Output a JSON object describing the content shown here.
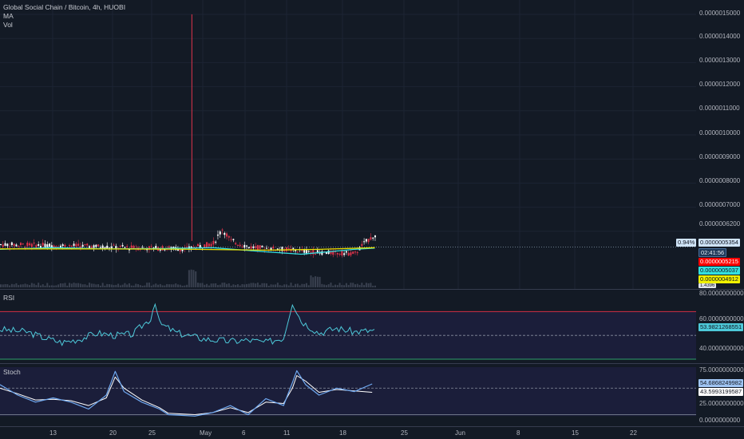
{
  "main": {
    "title": "Global Social Chain / Bitcoin, 4h, HUOBI",
    "indicators": [
      "MA",
      "Vol"
    ],
    "price_ticks": [
      "0.0000015000",
      "0.0000014000",
      "0.0000013000",
      "0.0000012000",
      "0.0000011000",
      "0.0000010000",
      "0.0000009000",
      "0.0000008000",
      "0.0000007000",
      "0.0000006200"
    ],
    "change_badge": "0.94%",
    "last_price": "0.0000005354",
    "countdown": "02:41:56",
    "ma_red": "0.0000005215",
    "ma_cyan": "0.0000005037",
    "ma_yellow": "0.0000004912",
    "vol_tag": "1.4396"
  },
  "rsi": {
    "label": "RSI",
    "ticks": [
      "80.0000000000",
      "60.0000000000",
      "40.0000000000"
    ],
    "value": "53.9821268551"
  },
  "stoch": {
    "label": "Stoch",
    "ticks": [
      "75.0000000000",
      "25.0000000000",
      "0.0000000000"
    ],
    "k_value": "54.6868249982",
    "d_value": "43.5993199587"
  },
  "time_axis": [
    "13",
    "20",
    "25",
    "May",
    "6",
    "11",
    "18",
    "25",
    "Jun",
    "8",
    "15",
    "22"
  ],
  "colors": {
    "background": "#131a25",
    "candle_up": "#ffffff",
    "candle_down": "#e0334b",
    "ma_cyan": "#33e0e0",
    "ma_yellow": "#e8e000",
    "ma_red": "#ff0000",
    "rsi_line": "#4dc9d9",
    "stoch_k": "#6fa8f0",
    "stoch_d": "#ffffff",
    "osc_band": "#1b1e3a"
  },
  "chart_data": {
    "type": "candlestick",
    "title": "Global Social Chain / Bitcoin, 4h, HUOBI",
    "ylim": [
      5e-07,
      1.5e-06
    ],
    "price_path": [
      [
        0,
        5.45e-07
      ],
      [
        8,
        5.4e-07
      ],
      [
        15,
        5.32e-07
      ],
      [
        21,
        5.27e-07
      ],
      [
        24,
        5.5e-07
      ],
      [
        25,
        6.1e-07
      ],
      [
        26,
        5.6e-07
      ],
      [
        28,
        5.35e-07
      ],
      [
        32,
        5.25e-07
      ],
      [
        36,
        5.12e-07
      ],
      [
        40,
        5.08e-07
      ],
      [
        41,
        5.5e-07
      ],
      [
        42,
        5.8e-07
      ],
      [
        43,
        5.75e-07
      ],
      [
        44,
        5.6e-07
      ],
      [
        45,
        5.45e-07
      ],
      [
        47,
        5.35e-07
      ],
      [
        49,
        5.3e-07
      ],
      [
        51,
        5.35e-07
      ],
      [
        53,
        5.38e-07
      ],
      [
        55,
        5.35e-07
      ]
    ],
    "spike": {
      "day": 17.6,
      "high": 1.5e-06
    },
    "rsi_ylim": [
      30,
      85
    ],
    "rsi_bands": [
      70,
      50,
      30
    ],
    "rsi_path": [
      [
        0,
        55
      ],
      [
        3,
        53
      ],
      [
        5,
        48
      ],
      [
        7,
        44
      ],
      [
        9,
        47
      ],
      [
        11,
        52
      ],
      [
        13,
        50
      ],
      [
        15,
        51
      ],
      [
        16,
        58
      ],
      [
        17,
        64
      ],
      [
        17.5,
        79
      ],
      [
        18,
        60
      ],
      [
        20,
        52
      ],
      [
        23,
        47
      ],
      [
        26,
        45
      ],
      [
        28,
        46
      ],
      [
        30,
        44
      ],
      [
        32,
        48
      ],
      [
        33,
        78
      ],
      [
        34,
        62
      ],
      [
        36,
        52
      ],
      [
        38,
        56
      ],
      [
        40,
        53
      ],
      [
        42,
        54
      ]
    ],
    "stoch_ylim": [
      0,
      80
    ],
    "stoch_bands": [
      50,
      20
    ],
    "stoch_k": [
      [
        0,
        55
      ],
      [
        2,
        40
      ],
      [
        4,
        30
      ],
      [
        6,
        36
      ],
      [
        8,
        30
      ],
      [
        10,
        20
      ],
      [
        12,
        40
      ],
      [
        13,
        74
      ],
      [
        14,
        45
      ],
      [
        16,
        30
      ],
      [
        18,
        20
      ],
      [
        19,
        12
      ],
      [
        22,
        10
      ],
      [
        24,
        15
      ],
      [
        26,
        25
      ],
      [
        28,
        12
      ],
      [
        30,
        35
      ],
      [
        32,
        25
      ],
      [
        33,
        58
      ],
      [
        33.5,
        75
      ],
      [
        34.5,
        55
      ],
      [
        36,
        40
      ],
      [
        38,
        50
      ],
      [
        40,
        45
      ],
      [
        42,
        56
      ]
    ],
    "stoch_d": [
      [
        0,
        50
      ],
      [
        2,
        42
      ],
      [
        4,
        33
      ],
      [
        6,
        34
      ],
      [
        8,
        32
      ],
      [
        10,
        25
      ],
      [
        12,
        36
      ],
      [
        13,
        66
      ],
      [
        14,
        50
      ],
      [
        16,
        33
      ],
      [
        18,
        22
      ],
      [
        19,
        14
      ],
      [
        22,
        12
      ],
      [
        24,
        15
      ],
      [
        26,
        22
      ],
      [
        28,
        15
      ],
      [
        30,
        30
      ],
      [
        32,
        28
      ],
      [
        33,
        50
      ],
      [
        33.5,
        68
      ],
      [
        34.5,
        60
      ],
      [
        36,
        44
      ],
      [
        38,
        48
      ],
      [
        40,
        46
      ],
      [
        42,
        44
      ]
    ]
  }
}
